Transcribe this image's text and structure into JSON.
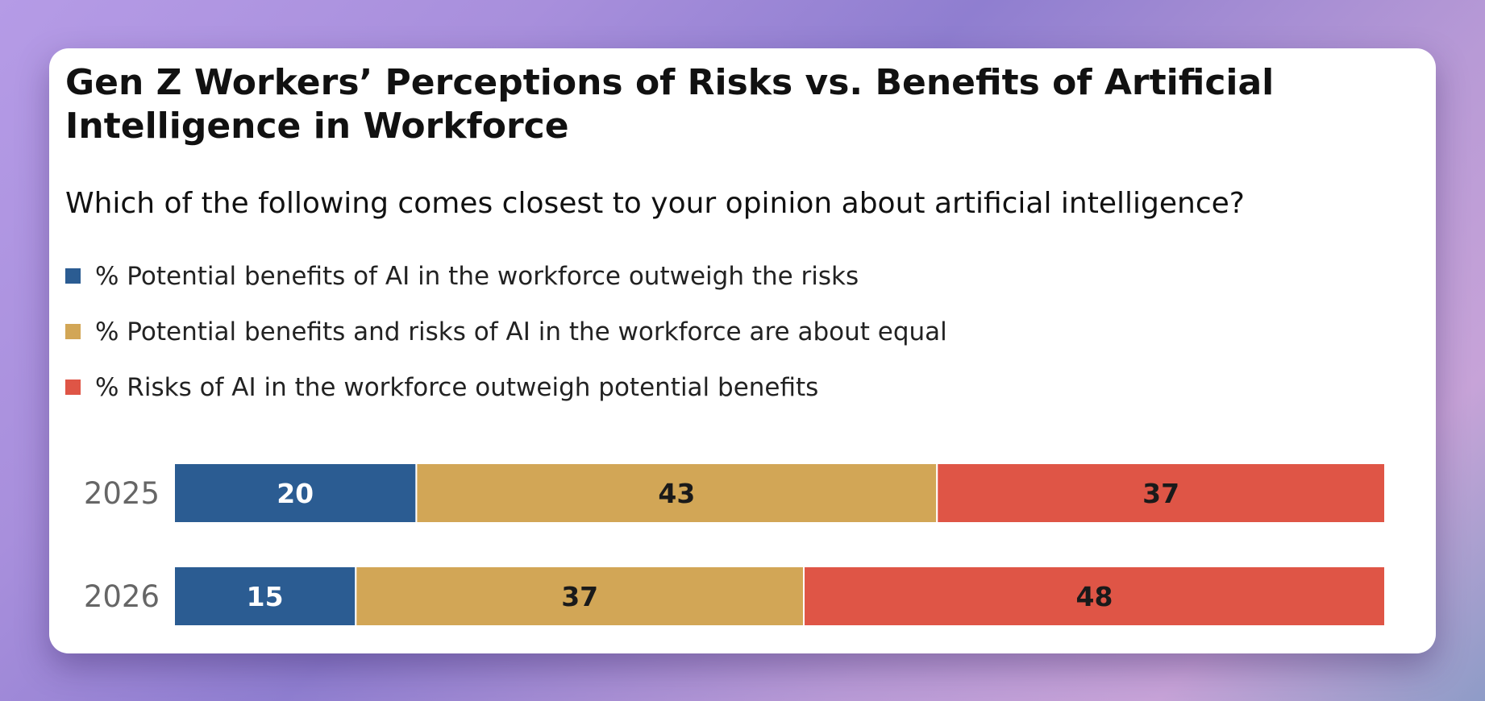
{
  "chart_data": {
    "type": "bar",
    "orientation": "horizontal-stacked",
    "title": "Gen Z Workers’ Perceptions of Risks vs. Benefits of Artificial Intelligence in Workforce",
    "subtitle": "Which of the following comes closest to your opinion about artificial intelligence?",
    "categories": [
      "2025",
      "2026"
    ],
    "series": [
      {
        "name": "% Potential benefits of AI in the workforce outweigh the risks",
        "values": [
          20,
          15
        ],
        "color": "#2b5c92",
        "label_color": "#ffffff"
      },
      {
        "name": "% Potential benefits and risks of AI in the workforce are about equal",
        "values": [
          43,
          37
        ],
        "color": "#d2a656",
        "label_color": "#1a1a1a"
      },
      {
        "name": "% Risks of AI in the workforce outweigh potential benefits",
        "values": [
          37,
          48
        ],
        "color": "#df5546",
        "label_color": "#1a1a1a"
      }
    ],
    "xlim": [
      0,
      100
    ],
    "grid": false,
    "legend_placement": "top-left"
  }
}
